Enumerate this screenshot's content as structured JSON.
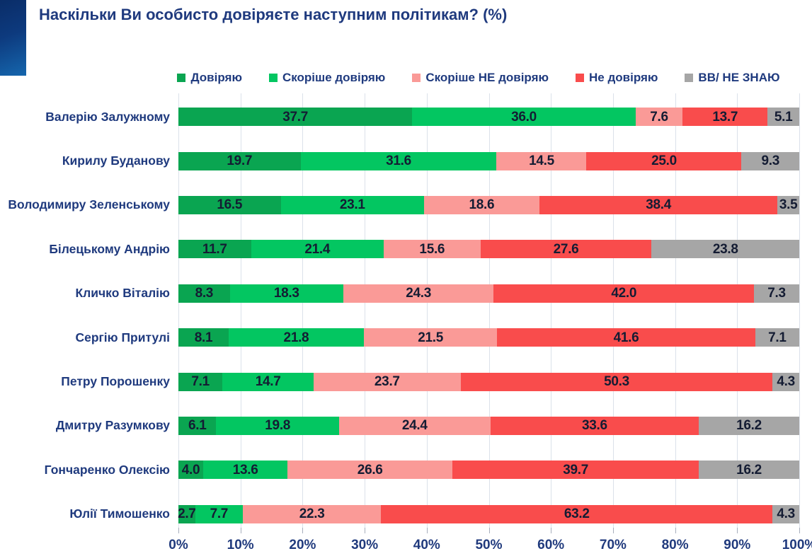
{
  "title": "Наскільки Ви особисто довіряєте наступним політикам? (%)",
  "colors": {
    "trust": "#0aa551",
    "rather_trust": "#03c661",
    "rather_distrust": "#fa9a97",
    "distrust": "#f94c4c",
    "dont_know": "#a6a6a6",
    "heading_navy": "#1f3a7e",
    "value_text": "#141c33",
    "gridline": "#dbe1ea",
    "corner_accent_top": "#0a2d68",
    "corner_accent_bottom": "#1566ad"
  },
  "chart_data": {
    "type": "bar",
    "stacked": true,
    "orientation": "horizontal",
    "title": "Наскільки Ви особисто довіряєте наступним політикам? (%)",
    "categories": [
      "Валерію Залужному",
      "Кирилу Буданову",
      "Володимиру Зеленському",
      "Білецькому Андрію",
      "Кличко Віталію",
      "Сергію Притулі",
      "Петру Порошенку",
      "Дмитру Разумкову",
      "Гончаренко Олексію",
      "Юлії Тимошенко"
    ],
    "series": [
      {
        "name": "Довіряю",
        "color": "#0aa551",
        "values": [
          37.7,
          19.7,
          16.5,
          11.7,
          8.3,
          8.1,
          7.1,
          6.1,
          4.0,
          2.7
        ]
      },
      {
        "name": "Скоріше довіряю",
        "color": "#03c661",
        "values": [
          36.0,
          31.6,
          23.1,
          21.4,
          18.3,
          21.8,
          14.7,
          19.8,
          13.6,
          7.7
        ]
      },
      {
        "name": "Скоріше НЕ довіряю",
        "color": "#fa9a97",
        "values": [
          7.6,
          14.5,
          18.6,
          15.6,
          24.3,
          21.5,
          23.7,
          24.4,
          26.6,
          22.3
        ]
      },
      {
        "name": "Не довіряю",
        "color": "#f94c4c",
        "values": [
          13.7,
          25.0,
          38.4,
          27.6,
          42.0,
          41.6,
          50.3,
          33.6,
          39.7,
          63.2
        ]
      },
      {
        "name": "ВВ/ НЕ ЗНАЮ",
        "color": "#a6a6a6",
        "values": [
          5.1,
          9.3,
          3.5,
          23.8,
          7.3,
          7.1,
          4.3,
          16.2,
          16.2,
          4.3
        ]
      }
    ],
    "x_axis": {
      "ticks": [
        "0%",
        "10%",
        "20%",
        "30%",
        "40%",
        "50%",
        "60%",
        "70%",
        "80%",
        "90%",
        "100%"
      ],
      "range": [
        0,
        100
      ],
      "grid": true
    },
    "legend_position": "top",
    "value_labels": true,
    "value_label_format": "one_decimal"
  }
}
